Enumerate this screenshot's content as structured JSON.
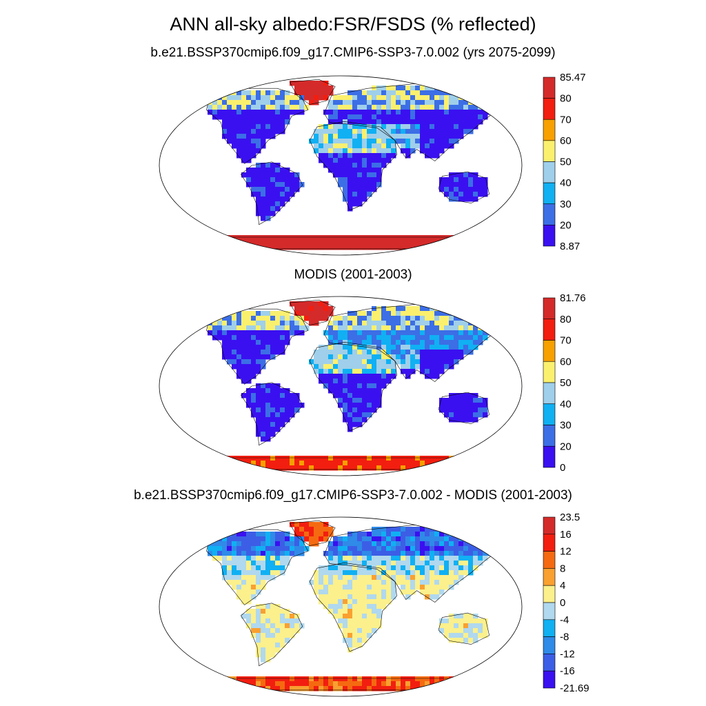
{
  "figure": {
    "title": "ANN all-sky albedo:FSR/FSDS (% reflected)"
  },
  "panels": [
    {
      "title": "b.e21.BSSP370cmip6.f09_g17.CMIP6-SSP3-7.0.002 (yrs 2075-2099)",
      "colorbar": {
        "labels": [
          "85.47",
          "80",
          "70",
          "60",
          "50",
          "40",
          "30",
          "20",
          "8.87"
        ],
        "colors": [
          "#d42a2a",
          "#f21e10",
          "#f7a000",
          "#fbf06e",
          "#9fcfea",
          "#10b0f3",
          "#3c6ee6",
          "#3a10f0"
        ]
      }
    },
    {
      "title": "MODIS (2001-2003)",
      "colorbar": {
        "labels": [
          "81.76",
          "80",
          "70",
          "60",
          "50",
          "40",
          "30",
          "20",
          "0"
        ],
        "colors": [
          "#d42a2a",
          "#f21e10",
          "#f7a000",
          "#fbf06e",
          "#9fcfea",
          "#10b0f3",
          "#3c6ee6",
          "#3a10f0"
        ]
      }
    },
    {
      "title": "b.e21.BSSP370cmip6.f09_g17.CMIP6-SSP3-7.0.002 - MODIS (2001-2003)",
      "colorbar": {
        "labels": [
          "23.5",
          "16",
          "12",
          "8",
          "4",
          "0",
          "-4",
          "-8",
          "-12",
          "-16",
          "-21.69"
        ],
        "colors": [
          "#d42a2a",
          "#f21e10",
          "#f56a10",
          "#f9a030",
          "#fbf08c",
          "#b0d8ee",
          "#10b0f3",
          "#2f8ae8",
          "#3c5ee6",
          "#3a10f0"
        ]
      }
    }
  ]
}
